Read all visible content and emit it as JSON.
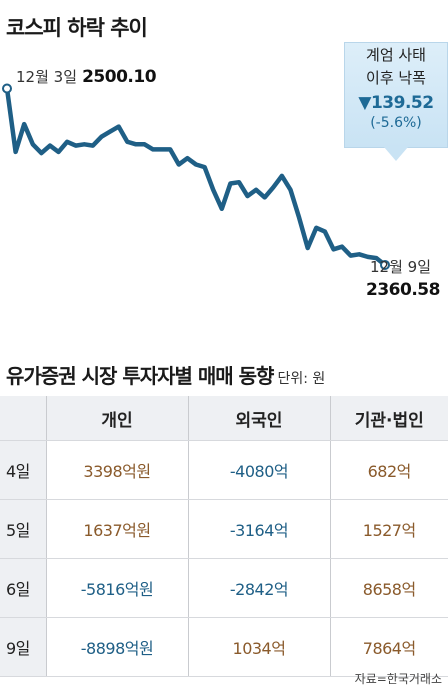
{
  "chart_title": "코스피 하락 추이",
  "callout": {
    "line1": "계엄 사태",
    "line2": "이후 낙폭",
    "drop": "▼139.52",
    "pct": "(-5.6%)"
  },
  "start_label": {
    "date": "12월 3일",
    "value": "2500.10"
  },
  "end_label": {
    "date": "12월 9일",
    "value": "2360.58"
  },
  "chart_data": {
    "type": "line",
    "title": "코스피 하락 추이",
    "xlabel": "",
    "ylabel": "",
    "grid": false,
    "ylim": [
      2340,
      2510
    ],
    "values": [
      2500.1,
      2450,
      2472,
      2456,
      2449,
      2455,
      2450,
      2458,
      2455,
      2456,
      2455,
      2462,
      2466,
      2470,
      2458,
      2456,
      2456,
      2452,
      2452,
      2452,
      2440,
      2445,
      2440,
      2438,
      2420,
      2405,
      2425,
      2426,
      2415,
      2420,
      2414,
      2422,
      2431,
      2420,
      2398,
      2374,
      2390,
      2387,
      2373,
      2375,
      2368,
      2369,
      2367,
      2366,
      2360.58
    ],
    "color": "#1f5f86"
  },
  "table_title": "유가증권 시장 투자자별 매매 동향",
  "table_unit": "단위: 원",
  "table": {
    "headers": [
      "개인",
      "외국인",
      "기관·법인"
    ],
    "rows": [
      {
        "day": "4일",
        "cells": [
          "3398억원",
          "-4080억",
          "682억"
        ],
        "signs": [
          "pos",
          "neg",
          "pos"
        ]
      },
      {
        "day": "5일",
        "cells": [
          "1637억원",
          "-3164억",
          "1527억"
        ],
        "signs": [
          "pos",
          "neg",
          "pos"
        ]
      },
      {
        "day": "6일",
        "cells": [
          "-5816억원",
          "-2842억",
          "8658억"
        ],
        "signs": [
          "neg",
          "neg",
          "pos"
        ]
      },
      {
        "day": "9일",
        "cells": [
          "-8898억원",
          "1034억",
          "7864억"
        ],
        "signs": [
          "neg",
          "pos",
          "pos"
        ]
      }
    ]
  },
  "source": "자료=한국거래소"
}
